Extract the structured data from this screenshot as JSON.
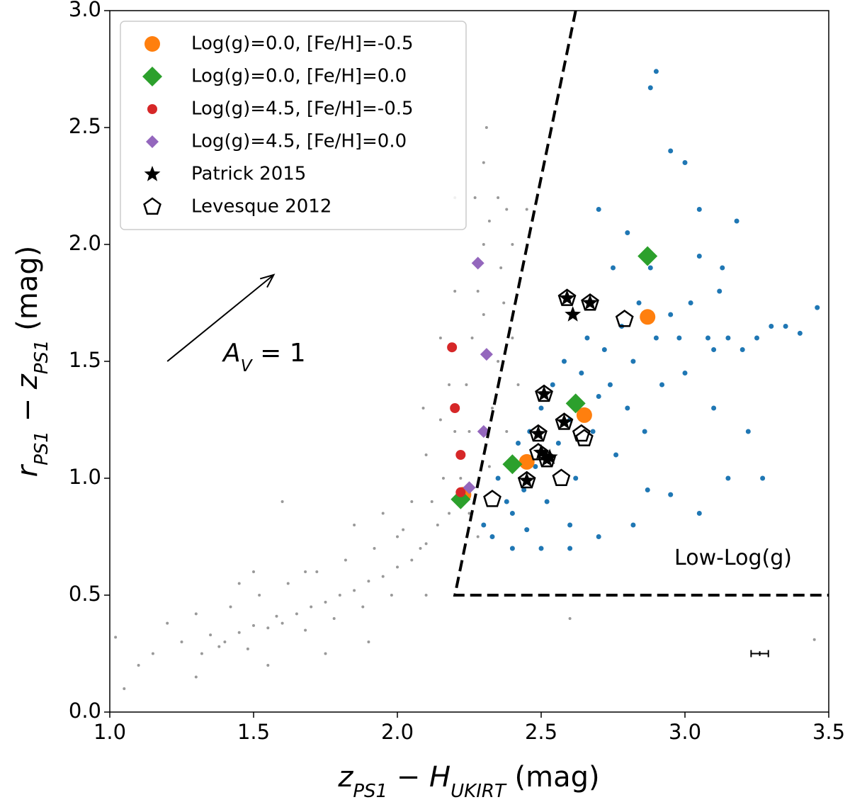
{
  "chart_data": {
    "type": "scatter",
    "xlabel": [
      "z",
      "PS1",
      " − ",
      "H",
      "UKIRT",
      " (mag)"
    ],
    "ylabel": [
      "r",
      "PS1",
      " − ",
      "z",
      "PS1",
      " (mag)"
    ],
    "xlim": [
      1.0,
      3.5
    ],
    "ylim": [
      0.0,
      3.0
    ],
    "xticks": [
      {
        "value": 1,
        "label": "1.0"
      },
      {
        "value": 1.5,
        "label": "1.5"
      },
      {
        "value": 2,
        "label": "2.0"
      },
      {
        "value": 2.5,
        "label": "2.5"
      },
      {
        "value": 3,
        "label": "3.0"
      },
      {
        "value": 3.5,
        "label": "3.5"
      }
    ],
    "yticks": [
      {
        "value": 0,
        "label": "0.0"
      },
      {
        "value": 0.5,
        "label": "0.5"
      },
      {
        "value": 1,
        "label": "1.0"
      },
      {
        "value": 1.5,
        "label": "1.5"
      },
      {
        "value": 2,
        "label": "2.0"
      },
      {
        "value": 2.5,
        "label": "2.5"
      },
      {
        "value": 3,
        "label": "3.0"
      }
    ],
    "legend": "upper left",
    "series": [
      {
        "color": "#999999",
        "marker": "circle",
        "size": 2,
        "x": [
          1.02,
          1.05,
          1.1,
          1.15,
          1.2,
          1.25,
          1.3,
          1.32,
          1.35,
          1.38,
          1.4,
          1.42,
          1.45,
          1.48,
          1.5,
          1.52,
          1.55,
          1.58,
          1.6,
          1.62,
          1.65,
          1.68,
          1.7,
          1.72,
          1.75,
          1.78,
          1.8,
          1.82,
          1.85,
          1.88,
          1.9,
          1.92,
          1.95,
          1.98,
          2.0,
          2.02,
          2.05,
          2.08,
          2.1,
          2.12,
          2.14,
          2.16,
          2.18,
          2.2,
          2.22,
          2.24,
          2.26,
          2.28,
          2.3,
          2.32,
          2.35,
          2.36,
          2.38,
          2.4,
          2.3,
          2.25,
          2.18,
          2.1,
          2.05,
          2.0,
          1.95,
          2.15,
          2.2,
          2.3,
          2.35,
          2.33,
          2.27,
          2.31,
          2.2,
          1.5,
          1.3,
          1.6,
          1.9,
          2.1,
          1.45,
          2.25,
          2.28,
          2.32,
          2.37,
          2.4,
          2.15,
          2.09,
          1.85,
          1.75,
          1.68,
          1.55,
          2.45,
          2.42,
          2.38,
          3.45,
          2.6
        ],
        "y": [
          0.32,
          0.1,
          0.2,
          0.25,
          0.38,
          0.3,
          0.42,
          0.25,
          0.33,
          0.28,
          0.3,
          0.45,
          0.34,
          0.27,
          0.37,
          0.5,
          0.36,
          0.41,
          0.38,
          0.55,
          0.42,
          0.35,
          0.45,
          0.6,
          0.47,
          0.4,
          0.5,
          0.65,
          0.52,
          0.45,
          0.56,
          0.7,
          0.58,
          0.5,
          0.62,
          0.78,
          0.65,
          0.7,
          0.72,
          0.9,
          0.8,
          1.0,
          0.85,
          1.2,
          1.0,
          1.4,
          1.6,
          1.8,
          2.0,
          2.1,
          2.2,
          1.9,
          2.15,
          2.0,
          2.35,
          1.2,
          1.4,
          1.1,
          0.9,
          0.75,
          0.85,
          1.6,
          1.8,
          1.7,
          1.5,
          1.3,
          2.2,
          2.5,
          2.2,
          0.6,
          0.15,
          0.9,
          0.3,
          0.5,
          0.55,
          0.85,
          0.75,
          1.05,
          1.75,
          1.6,
          1.25,
          1.3,
          0.8,
          0.25,
          0.6,
          0.2,
          2.15,
          1.4,
          1.2,
          0.31,
          0.4
        ]
      },
      {
        "color": "#1f77b4",
        "marker": "circle",
        "size": 3.5,
        "x": [
          2.3,
          2.33,
          2.35,
          2.38,
          2.4,
          2.42,
          2.44,
          2.46,
          2.48,
          2.5,
          2.52,
          2.54,
          2.56,
          2.58,
          2.6,
          2.62,
          2.64,
          2.66,
          2.68,
          2.7,
          2.72,
          2.74,
          2.76,
          2.78,
          2.8,
          2.82,
          2.84,
          2.86,
          2.88,
          2.9,
          2.92,
          2.95,
          2.98,
          3.0,
          3.02,
          3.05,
          3.08,
          3.1,
          3.12,
          3.15,
          3.2,
          3.25,
          3.3,
          3.35,
          3.4,
          3.46,
          2.9,
          2.88,
          2.95,
          3.0,
          3.05,
          3.13,
          3.22,
          3.15,
          3.27,
          3.05,
          2.95,
          2.87,
          2.7,
          2.6,
          2.5,
          2.4,
          2.7,
          2.8,
          2.75,
          2.6,
          2.45,
          3.18,
          3.1,
          2.82
        ],
        "y": [
          0.8,
          0.75,
          1.0,
          0.9,
          0.85,
          1.15,
          0.95,
          1.2,
          1.05,
          1.3,
          0.9,
          1.4,
          1.15,
          1.5,
          1.25,
          1.0,
          1.45,
          1.6,
          1.2,
          1.35,
          1.55,
          1.4,
          1.1,
          1.65,
          1.3,
          1.5,
          1.75,
          1.2,
          1.9,
          1.6,
          1.4,
          1.7,
          1.6,
          1.45,
          1.75,
          1.95,
          1.6,
          1.55,
          1.8,
          1.6,
          1.55,
          1.6,
          1.65,
          1.65,
          1.62,
          1.73,
          2.74,
          2.67,
          2.4,
          2.35,
          2.15,
          1.9,
          1.2,
          1.0,
          1.0,
          0.85,
          0.93,
          0.95,
          0.75,
          0.7,
          0.7,
          0.7,
          2.15,
          2.05,
          1.9,
          0.8,
          0.78,
          2.1,
          1.3,
          0.8
        ]
      },
      {
        "name": "Log(g)=0.0, [Fe/H]=-0.5",
        "color": "#ff7f0e",
        "marker": "circle",
        "size": 11,
        "x": [
          2.23,
          2.45,
          2.65,
          2.87
        ],
        "y": [
          0.93,
          1.07,
          1.27,
          1.69
        ]
      },
      {
        "name": "Log(g)=0.0, [Fe/H]=0.0",
        "color": "#2ca02c",
        "marker": "diamond",
        "size": 14,
        "x": [
          2.22,
          2.4,
          2.62,
          2.87
        ],
        "y": [
          0.91,
          1.06,
          1.32,
          1.95
        ]
      },
      {
        "name": "Log(g)=4.5, [Fe/H]=-0.5",
        "color": "#d62728",
        "marker": "circle",
        "size": 7,
        "x": [
          2.22,
          2.22,
          2.2,
          2.19
        ],
        "y": [
          0.94,
          1.1,
          1.3,
          1.56
        ]
      },
      {
        "name": "Log(g)=4.5, [Fe/H]=0.0",
        "color": "#9467bd",
        "marker": "diamond",
        "size": 9,
        "x": [
          2.25,
          2.3,
          2.31,
          2.28
        ],
        "y": [
          0.96,
          1.2,
          1.53,
          1.92
        ]
      },
      {
        "name": "Patrick 2015",
        "color": "#000000",
        "marker": "star",
        "size": 12,
        "x": [
          2.61,
          2.59,
          2.67,
          2.51,
          2.49,
          2.58,
          2.45,
          2.5,
          2.53,
          2.52
        ],
        "y": [
          1.7,
          1.77,
          1.75,
          1.36,
          1.19,
          1.24,
          0.99,
          1.11,
          1.09,
          1.08
        ]
      },
      {
        "name": "Levesque 2012",
        "color": "#000000",
        "marker": "pentagon",
        "size": 12,
        "x": [
          2.33,
          2.45,
          2.52,
          2.57,
          2.65,
          2.79,
          2.59,
          2.67,
          2.51,
          2.49,
          2.58,
          2.64,
          2.49
        ],
        "y": [
          0.91,
          0.99,
          1.08,
          1.0,
          1.17,
          1.68,
          1.77,
          1.75,
          1.36,
          1.19,
          1.24,
          1.19,
          1.11
        ]
      }
    ],
    "boundary": {
      "x": [
        2.62,
        2.2,
        3.5
      ],
      "y": [
        3.0,
        0.5,
        0.5
      ]
    },
    "arrow": {
      "x": [
        1.2,
        1.57
      ],
      "y": [
        1.5,
        1.87
      ]
    },
    "arrow_label": [
      "A",
      "V",
      " = 1"
    ],
    "region_label": "Low-Log(g)",
    "error_bar": {
      "x": 3.26,
      "y": 0.25,
      "xerr": 0.03,
      "yerr": 0.01
    }
  }
}
